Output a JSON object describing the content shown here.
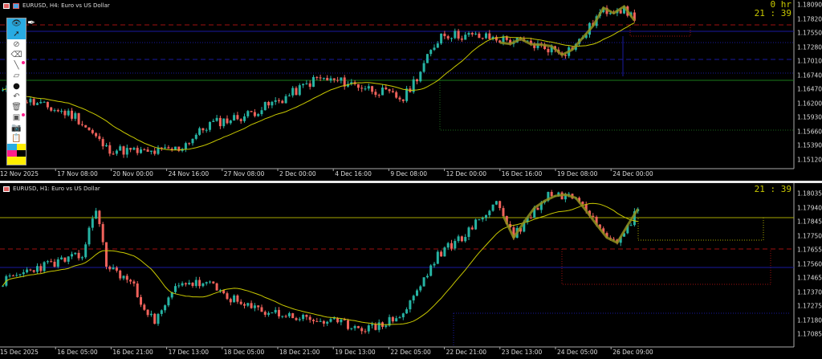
{
  "top_chart": {
    "title": "EURUSD, H4:  Euro vs US Dollar",
    "timer_line1": "0 hr",
    "timer_line2": "21 : 39",
    "price_labels": [
      "1.18090",
      "1.17820",
      "1.17550",
      "1.17280",
      "1.17010",
      "1.16740",
      "1.16470",
      "1.16200",
      "1.15930",
      "1.15660",
      "1.15390",
      "1.15120"
    ],
    "time_labels": [
      "12 Nov 2025",
      "17 Nov 08:00",
      "20 Nov 00:00",
      "24 Nov 16:00",
      "27 Nov 08:00",
      "2 Dec 00:00",
      "4 Dec 16:00",
      "9 Dec 08:00",
      "12 Dec 00:00",
      "16 Dec 16:00",
      "19 Dec 08:00",
      "24 Dec 00:00"
    ],
    "price_range": [
      1.1498,
      1.1818
    ],
    "price_path": [
      [
        0,
        1.1645
      ],
      [
        9,
        1.1622
      ],
      [
        21,
        1.1598
      ],
      [
        30,
        1.1536
      ],
      [
        42,
        1.1528
      ],
      [
        51,
        1.1536
      ],
      [
        60,
        1.1583
      ],
      [
        70,
        1.1598
      ],
      [
        81,
        1.163
      ],
      [
        91,
        1.1669
      ],
      [
        100,
        1.1661
      ],
      [
        109,
        1.1645
      ],
      [
        116,
        1.163
      ],
      [
        121,
        1.1684
      ],
      [
        127,
        1.1754
      ],
      [
        140,
        1.1747
      ],
      [
        149,
        1.1739
      ],
      [
        163,
        1.172
      ],
      [
        167,
        1.1739
      ],
      [
        173,
        1.1793
      ],
      [
        178,
        1.1804
      ],
      [
        183,
        1.1786
      ]
    ]
  },
  "bottom_chart": {
    "title": "EURUSD, H1:  Euro vs US Dollar",
    "timer": "21 : 39",
    "price_labels": [
      "1.18035",
      "1.17940",
      "1.17845",
      "1.17750",
      "1.17655",
      "1.17560",
      "1.17465",
      "1.17370",
      "1.17275",
      "1.17180",
      "1.17085"
    ],
    "time_labels": [
      "15 Dec 2025",
      "16 Dec 05:00",
      "16 Dec 21:00",
      "17 Dec 13:00",
      "18 Dec 05:00",
      "18 Dec 21:00",
      "19 Dec 13:00",
      "22 Dec 05:00",
      "22 Dec 21:00",
      "23 Dec 13:00",
      "24 Dec 05:00",
      "26 Dec 09:00"
    ],
    "price_range": [
      1.1702,
      1.1808
    ],
    "price_path": [
      [
        0,
        1.1744
      ],
      [
        9,
        1.1753
      ],
      [
        23,
        1.1761
      ],
      [
        27,
        1.1793
      ],
      [
        30,
        1.1755
      ],
      [
        37,
        1.1744
      ],
      [
        44,
        1.1717
      ],
      [
        51,
        1.1744
      ],
      [
        60,
        1.1742
      ],
      [
        70,
        1.1728
      ],
      [
        88,
        1.172
      ],
      [
        107,
        1.1714
      ],
      [
        116,
        1.1723
      ],
      [
        126,
        1.1761
      ],
      [
        135,
        1.1777
      ],
      [
        143,
        1.1796
      ],
      [
        148,
        1.1774
      ],
      [
        158,
        1.1801
      ],
      [
        167,
        1.1799
      ],
      [
        174,
        1.1777
      ],
      [
        179,
        1.1771
      ],
      [
        184,
        1.1792
      ]
    ]
  },
  "toolbar": {
    "tools": [
      "pen-icon",
      "eye-icon",
      "cursor-arrow-icon",
      "hide-icon",
      "eraser-icon",
      "line-icon",
      "ruler-eraser-icon",
      "dot-icon",
      "undo-icon",
      "trash-icon",
      "screen-icon",
      "camera-icon",
      "clipboard-icon",
      "color-palette-icon"
    ],
    "palette": [
      "#29abe2",
      "#ffee00",
      "#ff1e8c",
      "#000000",
      "#ffee00",
      "#ffee00"
    ]
  },
  "colors": {
    "bull": "#26b3a3",
    "bear": "#f0625b",
    "ma": "#c8c800",
    "zigzag": "#8f8f1e",
    "background": "#000000"
  }
}
